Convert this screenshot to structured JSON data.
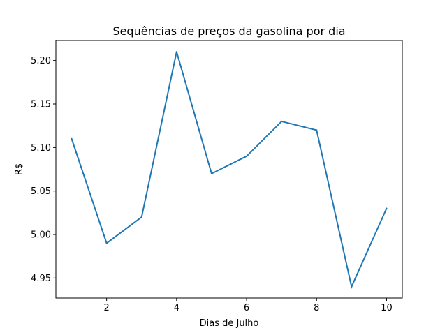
{
  "chart_data": {
    "type": "line",
    "title": "Sequências de preços da gasolina por dia",
    "xlabel": "Dias de Julho",
    "ylabel": "R$",
    "x": [
      1,
      2,
      3,
      4,
      5,
      6,
      7,
      8,
      9,
      10
    ],
    "series": [
      {
        "values": [
          5.11,
          4.99,
          5.02,
          5.21,
          5.07,
          5.09,
          5.13,
          5.12,
          4.94,
          5.03
        ],
        "color": "#1f77b4"
      }
    ],
    "xlim": [
      0.55,
      10.45
    ],
    "ylim": [
      4.927,
      5.223
    ],
    "x_ticks": [
      2,
      4,
      6,
      8,
      10
    ],
    "x_tick_labels": [
      "2",
      "4",
      "6",
      "8",
      "10"
    ],
    "y_ticks": [
      4.95,
      5.0,
      5.05,
      5.1,
      5.15,
      5.2
    ],
    "y_tick_labels": [
      "4.95",
      "5.00",
      "5.05",
      "5.10",
      "5.15",
      "5.20"
    ],
    "grid": false,
    "legend": "none"
  }
}
